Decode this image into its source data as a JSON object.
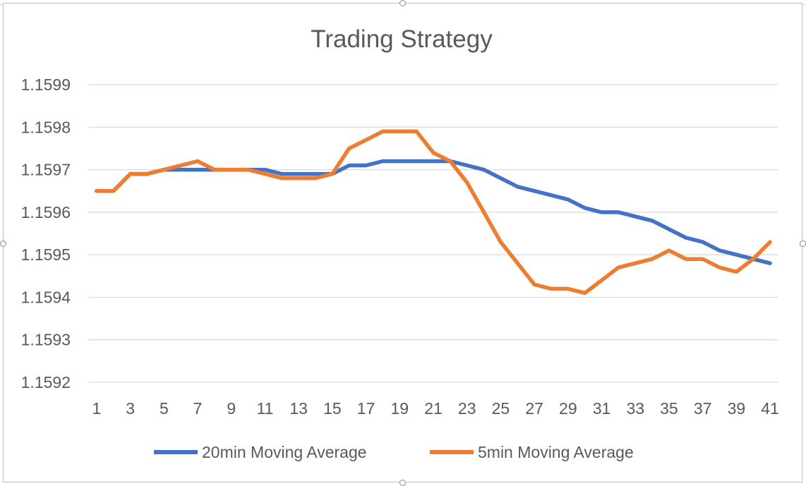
{
  "chart_data": {
    "type": "line",
    "title": "Trading Strategy",
    "xlabel": "",
    "ylabel": "",
    "x": [
      1,
      2,
      3,
      4,
      5,
      6,
      7,
      8,
      9,
      10,
      11,
      12,
      13,
      14,
      15,
      16,
      17,
      18,
      19,
      20,
      21,
      22,
      23,
      24,
      25,
      26,
      27,
      28,
      29,
      30,
      31,
      32,
      33,
      34,
      35,
      36,
      37,
      38,
      39,
      40,
      41
    ],
    "x_tick_labels": [
      "1",
      "3",
      "5",
      "7",
      "9",
      "11",
      "13",
      "15",
      "17",
      "19",
      "21",
      "23",
      "25",
      "27",
      "29",
      "31",
      "33",
      "35",
      "37",
      "39",
      "41"
    ],
    "y_tick_labels": [
      "1.1599",
      "1.1598",
      "1.1597",
      "1.1596",
      "1.1595",
      "1.1594",
      "1.1593",
      "1.1592"
    ],
    "ylim": [
      1.1592,
      1.1599
    ],
    "grid": true,
    "legend_position": "bottom",
    "series": [
      {
        "name": "20min Moving Average",
        "color": "#4472c4",
        "values": [
          1.15965,
          1.15965,
          1.15969,
          1.15969,
          1.1597,
          1.1597,
          1.1597,
          1.1597,
          1.1597,
          1.1597,
          1.1597,
          1.15969,
          1.15969,
          1.15969,
          1.15969,
          1.15971,
          1.15971,
          1.15972,
          1.15972,
          1.15972,
          1.15972,
          1.15972,
          1.15971,
          1.1597,
          1.15968,
          1.15966,
          1.15965,
          1.15964,
          1.15963,
          1.15961,
          1.1596,
          1.1596,
          1.15959,
          1.15958,
          1.15956,
          1.15954,
          1.15953,
          1.15951,
          1.1595,
          1.15949,
          1.15948
        ]
      },
      {
        "name": "5min Moving Average",
        "color": "#ed7d31",
        "values": [
          1.15965,
          1.15965,
          1.15969,
          1.15969,
          1.1597,
          1.15971,
          1.15972,
          1.1597,
          1.1597,
          1.1597,
          1.15969,
          1.15968,
          1.15968,
          1.15968,
          1.15969,
          1.15975,
          1.15977,
          1.15979,
          1.15979,
          1.15979,
          1.15974,
          1.15972,
          1.15967,
          1.1596,
          1.15953,
          1.15948,
          1.15943,
          1.15942,
          1.15942,
          1.15941,
          1.15944,
          1.15947,
          1.15948,
          1.15949,
          1.15951,
          1.15949,
          1.15949,
          1.15947,
          1.15946,
          1.15949,
          1.15953
        ]
      }
    ]
  }
}
